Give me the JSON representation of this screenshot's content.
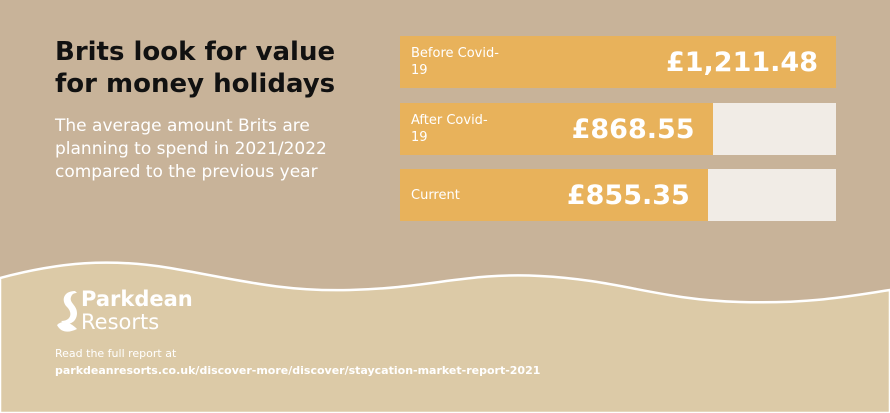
{
  "chart_data": {
    "type": "bar",
    "orientation": "horizontal",
    "title": "Brits look for value for money holidays",
    "subtitle": "The average amount Brits are planning to spend in 2021/2022 compared to the previous year",
    "categories": [
      "Before Covid-19",
      "After Covid-19",
      "Current"
    ],
    "values": [
      1211.48,
      868.55,
      855.35
    ],
    "value_labels": [
      "£1,211.48",
      "£868.55",
      "£855.35"
    ],
    "color": "#e8b25b",
    "brand": {
      "name": "Parkdean",
      "suffix": "Resorts"
    },
    "footer_note": "Read the full report at",
    "footer_url": "parkdeanresorts.co.uk/discover-more/discover/staycation-market-report-2021"
  }
}
